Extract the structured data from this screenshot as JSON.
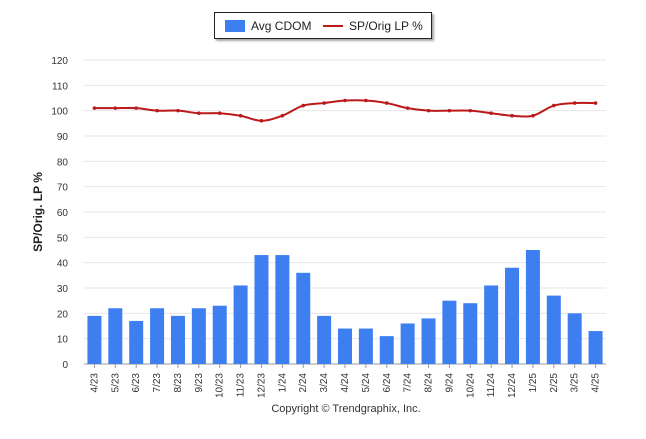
{
  "chart_data": {
    "type": "bar",
    "categories": [
      "4/23",
      "5/23",
      "6/23",
      "7/23",
      "8/23",
      "9/23",
      "10/23",
      "11/23",
      "12/23",
      "1/24",
      "2/24",
      "3/24",
      "4/24",
      "5/24",
      "6/24",
      "7/24",
      "8/24",
      "9/24",
      "10/24",
      "11/24",
      "12/24",
      "1/25",
      "2/25",
      "3/25",
      "4/25"
    ],
    "series": [
      {
        "name": "Avg CDOM",
        "type": "bar",
        "color": "#3d7ff0",
        "values": [
          19,
          22,
          17,
          22,
          19,
          22,
          23,
          31,
          43,
          43,
          36,
          19,
          14,
          14,
          11,
          16,
          18,
          25,
          24,
          31,
          38,
          45,
          27,
          20,
          13
        ]
      },
      {
        "name": "SP/Orig LP %",
        "type": "line",
        "color": "#bb1a1a",
        "values": [
          101,
          101,
          101,
          100,
          100,
          99,
          99,
          98,
          96,
          98,
          102,
          103,
          104,
          104,
          103,
          101,
          100,
          100,
          100,
          99,
          98,
          98,
          102,
          103,
          103
        ]
      }
    ],
    "ylabel": "SP/Orig. LP %",
    "xlabel": "",
    "ylim": [
      0,
      120
    ],
    "yticks": [
      0,
      10,
      20,
      30,
      40,
      50,
      60,
      70,
      80,
      90,
      100,
      110,
      120
    ],
    "grid": true,
    "legend_position": "top-center"
  },
  "legend": {
    "bar_label": "Avg CDOM",
    "line_label": "SP/Orig LP %"
  },
  "footer": {
    "copyright": "Copyright © Trendgraphix, Inc."
  }
}
